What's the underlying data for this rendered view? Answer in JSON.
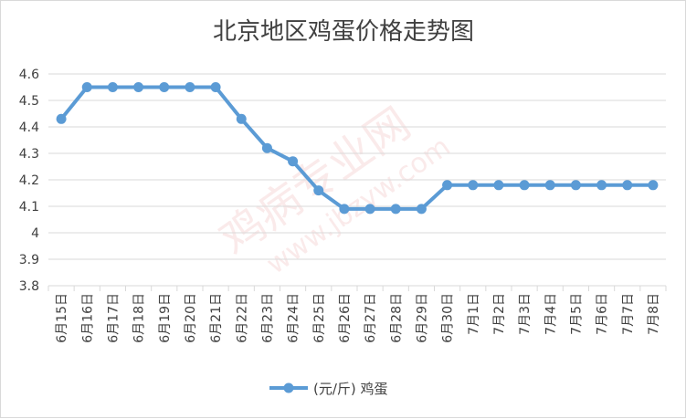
{
  "chart_data": {
    "type": "line",
    "title": "北京地区鸡蛋价格走势图",
    "xlabel": "",
    "ylabel": "",
    "ylim": [
      3.8,
      4.6
    ],
    "yticks": [
      3.8,
      3.9,
      4,
      4.1,
      4.2,
      4.3,
      4.4,
      4.5,
      4.6
    ],
    "ytick_labels": [
      "3.8",
      "3.9",
      "4",
      "4.1",
      "4.2",
      "4.3",
      "4.4",
      "4.5",
      "4.6"
    ],
    "grid": true,
    "legend": "bottom",
    "categories": [
      "6月15日",
      "6月16日",
      "6月17日",
      "6月18日",
      "6月19日",
      "6月20日",
      "6月21日",
      "6月22日",
      "6月23日",
      "6月24日",
      "6月25日",
      "6月26日",
      "6月27日",
      "6月28日",
      "6月29日",
      "6月30日",
      "7月1日",
      "7月2日",
      "7月3日",
      "7月4日",
      "7月5日",
      "7月6日",
      "7月7日",
      "7月8日"
    ],
    "series": [
      {
        "name": "(元/斤) 鸡蛋",
        "color": "#5b9bd5",
        "values": [
          4.43,
          4.55,
          4.55,
          4.55,
          4.55,
          4.55,
          4.55,
          4.43,
          4.32,
          4.27,
          4.16,
          4.09,
          4.09,
          4.09,
          4.09,
          4.18,
          4.18,
          4.18,
          4.18,
          4.18,
          4.18,
          4.18,
          4.18,
          4.18
        ]
      }
    ]
  },
  "watermark": {
    "text_cn": "鸡病专业网",
    "text_url": "www.jbzyw.com"
  },
  "colors": {
    "series": "#5b9bd5",
    "grid": "#d9d9d9",
    "text": "#404040"
  }
}
